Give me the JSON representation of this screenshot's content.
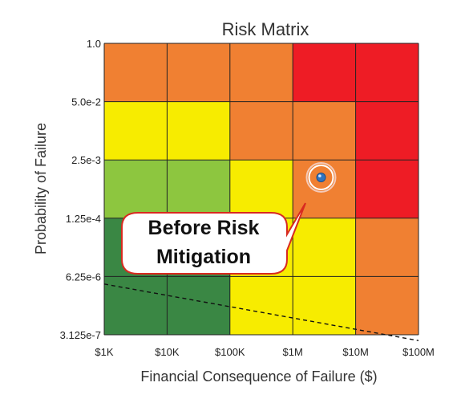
{
  "chart_data": {
    "type": "heatmap",
    "title": "Risk Matrix",
    "xlabel": "Financial Consequence of Failure ($)",
    "ylabel": "Probability of Failure",
    "x_ticks": [
      "$1K",
      "$10K",
      "$100K",
      "$1M",
      "$10M",
      "$100M"
    ],
    "y_ticks": [
      "1.0",
      "5.0e-2",
      "2.5e-3",
      "1.25e-4",
      "6.25e-6",
      "3.125e-7"
    ],
    "colors": {
      "dark_green": "#3a8744",
      "light_green": "#8dc63f",
      "yellow": "#f7ec00",
      "orange": "#f08032",
      "red": "#ee1c25"
    },
    "cells_top_to_bottom": [
      [
        "orange",
        "orange",
        "orange",
        "red",
        "red"
      ],
      [
        "yellow",
        "yellow",
        "orange",
        "orange",
        "red"
      ],
      [
        "light_green",
        "light_green",
        "yellow",
        "orange",
        "red"
      ],
      [
        "dark_green",
        "dark_green",
        "yellow",
        "yellow",
        "orange"
      ],
      [
        "dark_green",
        "dark_green",
        "yellow",
        "yellow",
        "orange"
      ]
    ],
    "risk_line": {
      "from": [
        0.0,
        0.87
      ],
      "to": [
        5.0,
        -0.1
      ],
      "style": "dashed"
    },
    "point": {
      "x": 3.45,
      "y": 2.7,
      "label_lines": [
        "Before Risk",
        "Mitigation"
      ]
    }
  }
}
